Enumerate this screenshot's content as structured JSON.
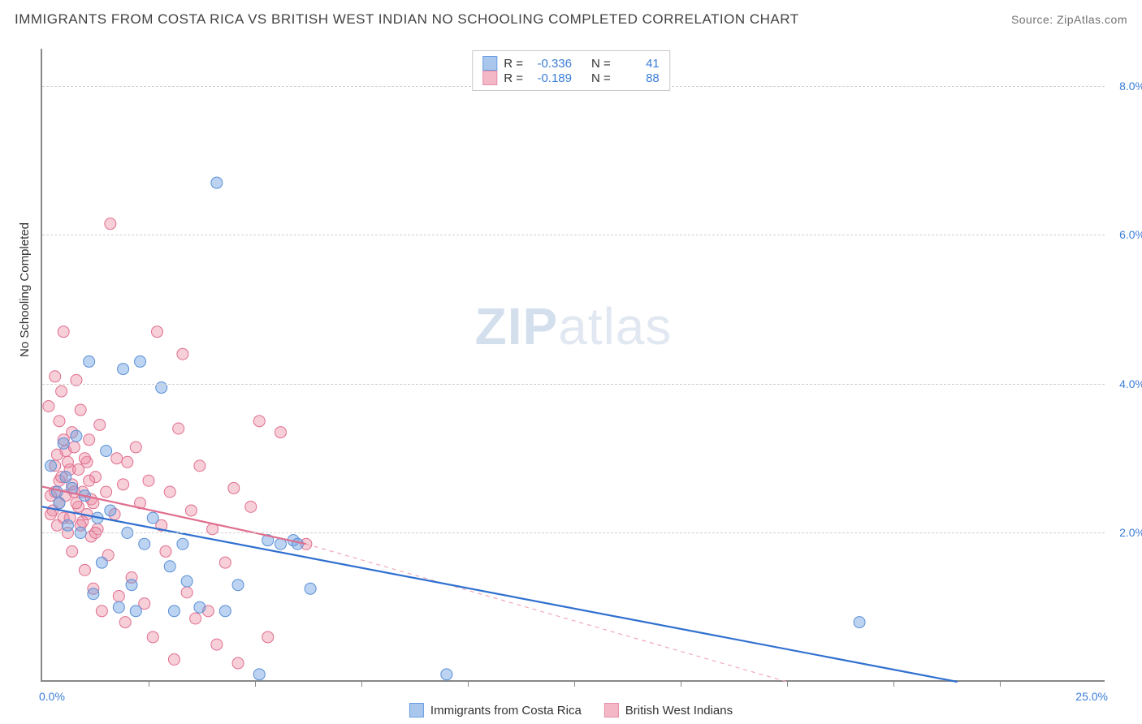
{
  "title": "IMMIGRANTS FROM COSTA RICA VS BRITISH WEST INDIAN NO SCHOOLING COMPLETED CORRELATION CHART",
  "source": "Source: ZipAtlas.com",
  "watermark_a": "ZIP",
  "watermark_b": "atlas",
  "chart": {
    "type": "scatter",
    "y_axis_title": "No Schooling Completed",
    "xlim": [
      0,
      25
    ],
    "ylim": [
      0,
      8.5
    ],
    "x_label_min": "0.0%",
    "x_label_max": "25.0%",
    "y_ticks": [
      2,
      4,
      6,
      8
    ],
    "y_tick_labels": [
      "2.0%",
      "4.0%",
      "6.0%",
      "8.0%"
    ],
    "x_tick_positions": [
      2.5,
      5,
      7.5,
      10,
      12.5,
      15,
      17.5,
      20,
      22.5
    ],
    "grid_color": "#d0d0d0",
    "axis_color": "#888888",
    "background_color": "#ffffff",
    "tick_label_color": "#3b7dd8",
    "series": [
      {
        "name": "Immigrants from Costa Rica",
        "color_fill": "rgba(106,159,225,0.45)",
        "color_stroke": "#5a8fd6",
        "swatch_fill": "#a9c6ec",
        "swatch_border": "#6a9fe1",
        "R_label": "R =",
        "R": "-0.336",
        "N_label": "N =",
        "N": "41",
        "marker_radius": 7,
        "trend": {
          "x1": 0,
          "y1": 2.35,
          "x2": 21.5,
          "y2": 0,
          "color": "#2f6fd0",
          "width": 2.2,
          "dash": null
        },
        "points": [
          [
            0.2,
            2.9
          ],
          [
            0.4,
            2.4
          ],
          [
            0.5,
            3.2
          ],
          [
            0.6,
            2.1
          ],
          [
            0.7,
            2.6
          ],
          [
            0.8,
            3.3
          ],
          [
            0.9,
            2.0
          ],
          [
            1.0,
            2.5
          ],
          [
            1.1,
            4.3
          ],
          [
            1.3,
            2.2
          ],
          [
            1.4,
            1.6
          ],
          [
            1.5,
            3.1
          ],
          [
            1.6,
            2.3
          ],
          [
            1.8,
            1.0
          ],
          [
            1.9,
            4.2
          ],
          [
            2.0,
            2.0
          ],
          [
            2.1,
            1.3
          ],
          [
            2.3,
            4.3
          ],
          [
            2.4,
            1.85
          ],
          [
            2.6,
            2.2
          ],
          [
            2.8,
            3.95
          ],
          [
            3.0,
            1.55
          ],
          [
            3.1,
            0.95
          ],
          [
            3.3,
            1.85
          ],
          [
            3.4,
            1.35
          ],
          [
            3.7,
            1.0
          ],
          [
            4.1,
            6.7
          ],
          [
            4.3,
            0.95
          ],
          [
            4.6,
            1.3
          ],
          [
            5.1,
            0.1
          ],
          [
            5.3,
            1.9
          ],
          [
            5.6,
            1.85
          ],
          [
            5.9,
            1.9
          ],
          [
            6.0,
            1.85
          ],
          [
            6.3,
            1.25
          ],
          [
            9.5,
            0.1
          ],
          [
            19.2,
            0.8
          ],
          [
            1.2,
            1.18
          ],
          [
            2.2,
            0.95
          ],
          [
            0.35,
            2.55
          ],
          [
            0.55,
            2.75
          ]
        ]
      },
      {
        "name": "British West Indians",
        "color_fill": "rgba(236,140,165,0.42)",
        "color_stroke": "#e06e8e",
        "swatch_fill": "#f3b7c6",
        "swatch_border": "#e78fa8",
        "R_label": "R =",
        "R": "-0.189",
        "N_label": "N =",
        "N": "88",
        "marker_radius": 7,
        "trend": {
          "x1": 0,
          "y1": 2.62,
          "x2": 6.2,
          "y2": 1.85,
          "color": "#e06e8e",
          "width": 2.2,
          "dash": null
        },
        "trend_ext": {
          "x1": 6.2,
          "y1": 1.85,
          "x2": 17.5,
          "y2": 0,
          "color": "#f0a8b8",
          "width": 1.2,
          "dash": "5,5"
        },
        "points": [
          [
            0.15,
            3.7
          ],
          [
            0.2,
            2.5
          ],
          [
            0.25,
            2.3
          ],
          [
            0.3,
            4.1
          ],
          [
            0.3,
            2.9
          ],
          [
            0.35,
            2.1
          ],
          [
            0.4,
            3.5
          ],
          [
            0.4,
            2.7
          ],
          [
            0.45,
            3.9
          ],
          [
            0.5,
            2.2
          ],
          [
            0.5,
            4.7
          ],
          [
            0.55,
            3.1
          ],
          [
            0.6,
            2.0
          ],
          [
            0.65,
            2.85
          ],
          [
            0.7,
            3.35
          ],
          [
            0.7,
            1.75
          ],
          [
            0.75,
            2.55
          ],
          [
            0.8,
            4.05
          ],
          [
            0.85,
            2.35
          ],
          [
            0.9,
            3.65
          ],
          [
            0.95,
            2.15
          ],
          [
            1.0,
            1.5
          ],
          [
            1.05,
            2.95
          ],
          [
            1.1,
            3.25
          ],
          [
            1.15,
            2.45
          ],
          [
            1.2,
            1.25
          ],
          [
            1.25,
            2.75
          ],
          [
            1.3,
            2.05
          ],
          [
            1.35,
            3.45
          ],
          [
            1.4,
            0.95
          ],
          [
            1.5,
            2.55
          ],
          [
            1.55,
            1.7
          ],
          [
            1.6,
            6.15
          ],
          [
            1.7,
            2.25
          ],
          [
            1.75,
            3.0
          ],
          [
            1.8,
            1.15
          ],
          [
            1.9,
            2.65
          ],
          [
            1.95,
            0.8
          ],
          [
            2.0,
            2.95
          ],
          [
            2.1,
            1.4
          ],
          [
            2.2,
            3.15
          ],
          [
            2.3,
            2.4
          ],
          [
            2.4,
            1.05
          ],
          [
            2.5,
            2.7
          ],
          [
            2.6,
            0.6
          ],
          [
            2.7,
            4.7
          ],
          [
            2.8,
            2.1
          ],
          [
            2.9,
            1.75
          ],
          [
            3.0,
            2.55
          ],
          [
            3.1,
            0.3
          ],
          [
            3.2,
            3.4
          ],
          [
            3.3,
            4.4
          ],
          [
            3.4,
            1.2
          ],
          [
            3.5,
            2.3
          ],
          [
            3.6,
            0.85
          ],
          [
            3.7,
            2.9
          ],
          [
            3.9,
            0.95
          ],
          [
            4.0,
            2.05
          ],
          [
            4.1,
            0.5
          ],
          [
            4.3,
            1.6
          ],
          [
            4.5,
            2.6
          ],
          [
            4.6,
            0.25
          ],
          [
            4.9,
            2.35
          ],
          [
            5.1,
            3.5
          ],
          [
            5.3,
            0.6
          ],
          [
            5.6,
            3.35
          ],
          [
            6.2,
            1.85
          ],
          [
            0.2,
            2.25
          ],
          [
            0.3,
            2.55
          ],
          [
            0.35,
            3.05
          ],
          [
            0.4,
            2.4
          ],
          [
            0.45,
            2.75
          ],
          [
            0.5,
            3.25
          ],
          [
            0.55,
            2.5
          ],
          [
            0.6,
            2.95
          ],
          [
            0.65,
            2.2
          ],
          [
            0.7,
            2.65
          ],
          [
            0.75,
            3.15
          ],
          [
            0.8,
            2.4
          ],
          [
            0.85,
            2.85
          ],
          [
            0.9,
            2.1
          ],
          [
            0.95,
            2.55
          ],
          [
            1.0,
            3.0
          ],
          [
            1.05,
            2.25
          ],
          [
            1.1,
            2.7
          ],
          [
            1.15,
            1.95
          ],
          [
            1.2,
            2.4
          ],
          [
            1.25,
            2.0
          ]
        ]
      }
    ]
  },
  "bottom_legend": [
    {
      "label": "Immigrants from Costa Rica",
      "fill": "#a9c6ec",
      "border": "#6a9fe1"
    },
    {
      "label": "British West Indians",
      "fill": "#f3b7c6",
      "border": "#e78fa8"
    }
  ]
}
